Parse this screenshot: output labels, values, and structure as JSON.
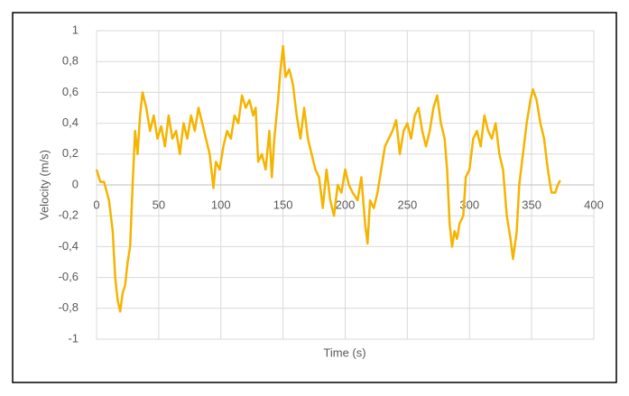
{
  "chart_data": {
    "type": "line",
    "x_label": "Time (s)",
    "y_label": "Velocity (m/s)",
    "x": [
      0,
      3,
      6,
      10,
      13,
      15,
      17,
      19,
      21,
      23,
      25,
      27,
      29,
      31,
      33,
      35,
      37,
      40,
      43,
      46,
      49,
      52,
      55,
      58,
      61,
      64,
      67,
      70,
      73,
      76,
      79,
      82,
      85,
      88,
      91,
      94,
      96,
      99,
      102,
      105,
      108,
      111,
      114,
      117,
      120,
      123,
      126,
      128,
      130,
      133,
      136,
      139,
      141,
      143,
      146,
      148,
      150,
      152,
      155,
      158,
      161,
      164,
      167,
      170,
      173,
      176,
      179,
      182,
      185,
      188,
      191,
      194,
      197,
      200,
      203,
      206,
      210,
      213,
      216,
      218,
      220,
      223,
      226,
      229,
      232,
      235,
      238,
      241,
      244,
      247,
      250,
      253,
      256,
      259,
      262,
      265,
      268,
      271,
      274,
      277,
      280,
      282,
      284,
      286,
      288,
      290,
      292,
      295,
      297,
      300,
      303,
      306,
      309,
      312,
      315,
      318,
      321,
      324,
      327,
      330,
      333,
      335,
      338,
      340,
      343,
      346,
      349,
      351,
      354,
      357,
      360,
      363,
      366,
      369,
      371,
      373
    ],
    "series": [
      {
        "name": "Velocity",
        "color": "#f5b400",
        "values": [
          0.1,
          0.02,
          0.02,
          -0.1,
          -0.3,
          -0.6,
          -0.75,
          -0.82,
          -0.7,
          -0.65,
          -0.5,
          -0.4,
          0.0,
          0.35,
          0.2,
          0.45,
          0.6,
          0.5,
          0.35,
          0.45,
          0.3,
          0.38,
          0.25,
          0.45,
          0.3,
          0.35,
          0.2,
          0.4,
          0.3,
          0.45,
          0.35,
          0.5,
          0.4,
          0.3,
          0.2,
          -0.02,
          0.15,
          0.1,
          0.25,
          0.35,
          0.3,
          0.45,
          0.4,
          0.58,
          0.5,
          0.55,
          0.45,
          0.5,
          0.15,
          0.2,
          0.1,
          0.35,
          0.05,
          0.3,
          0.55,
          0.75,
          0.9,
          0.7,
          0.75,
          0.65,
          0.45,
          0.3,
          0.5,
          0.3,
          0.2,
          0.1,
          0.05,
          -0.15,
          0.1,
          -0.1,
          -0.2,
          0.0,
          -0.05,
          0.1,
          0.0,
          -0.05,
          -0.1,
          0.05,
          -0.25,
          -0.38,
          -0.1,
          -0.15,
          -0.05,
          0.1,
          0.25,
          0.3,
          0.35,
          0.42,
          0.2,
          0.35,
          0.4,
          0.3,
          0.45,
          0.5,
          0.35,
          0.25,
          0.35,
          0.5,
          0.58,
          0.4,
          0.3,
          0.1,
          -0.25,
          -0.4,
          -0.3,
          -0.35,
          -0.25,
          -0.2,
          0.05,
          0.1,
          0.3,
          0.35,
          0.25,
          0.45,
          0.35,
          0.3,
          0.4,
          0.2,
          0.1,
          -0.2,
          -0.35,
          -0.48,
          -0.3,
          0.0,
          0.2,
          0.4,
          0.55,
          0.62,
          0.55,
          0.4,
          0.3,
          0.1,
          -0.05,
          -0.05,
          0.0,
          0.03
        ]
      }
    ],
    "xlim": [
      0,
      400
    ],
    "xticks": [
      0,
      50,
      100,
      150,
      200,
      250,
      300,
      350,
      400
    ],
    "ylim": [
      -1,
      1
    ],
    "yticks": [
      -1,
      {
        "value": -0.8,
        "label": "-0,8"
      },
      {
        "value": -0.6,
        "label": "-0,6"
      },
      {
        "value": -0.4,
        "label": "-0,4"
      },
      {
        "value": -0.2,
        "label": "-0,2"
      },
      0,
      {
        "value": 0.2,
        "label": "0,2"
      },
      {
        "value": 0.4,
        "label": "0,4"
      },
      {
        "value": 0.6,
        "label": "0,6"
      },
      {
        "value": 0.8,
        "label": "0,8"
      },
      1
    ],
    "grid": true
  }
}
